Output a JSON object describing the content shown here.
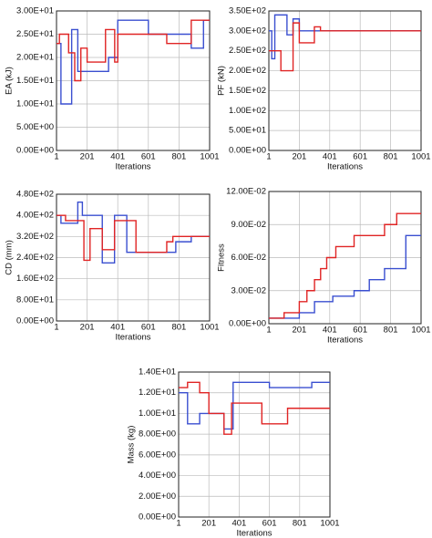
{
  "chart_data": [
    {
      "type": "line",
      "ylabel": "EA (kJ)",
      "xlabel": "Iterations",
      "xlim": [
        1,
        1001
      ],
      "xticks": [
        1,
        201,
        401,
        601,
        801,
        1001
      ],
      "ylim": [
        0,
        30
      ],
      "yticks": [
        {
          "value": 0,
          "label": "0.00E+00"
        },
        {
          "value": 5,
          "label": "5.00E+00"
        },
        {
          "value": 10,
          "label": "1.00E+01"
        },
        {
          "value": 15,
          "label": "1.50E+01"
        },
        {
          "value": 20,
          "label": "2.00E+01"
        },
        {
          "value": 25,
          "label": "2.50E+01"
        },
        {
          "value": 30,
          "label": "3.00E+01"
        }
      ],
      "grid": true,
      "series": [
        {
          "color": "#3a4fd0",
          "x": [
            1,
            30,
            30,
            100,
            100,
            140,
            140,
            341,
            341,
            401,
            401,
            601,
            601,
            881,
            881,
            961,
            961,
            1001
          ],
          "values": [
            23,
            23,
            10,
            10,
            26,
            26,
            17,
            17,
            20,
            20,
            28,
            28,
            25,
            25,
            22,
            22,
            28,
            28
          ]
        },
        {
          "color": "#e02424",
          "x": [
            1,
            20,
            20,
            80,
            80,
            120,
            120,
            160,
            160,
            201,
            201,
            321,
            321,
            381,
            381,
            401,
            401,
            721,
            721,
            881,
            881,
            1001
          ],
          "values": [
            23,
            23,
            25,
            25,
            21,
            21,
            15,
            15,
            22,
            22,
            19,
            19,
            26,
            26,
            19,
            19,
            25,
            25,
            23,
            23,
            28,
            28
          ]
        }
      ]
    },
    {
      "type": "line",
      "ylabel": "PF (kN)",
      "xlabel": "Iterations",
      "xlim": [
        1,
        1001
      ],
      "xticks": [
        1,
        201,
        401,
        601,
        801,
        1001
      ],
      "ylim": [
        0,
        350
      ],
      "yticks": [
        {
          "value": 0,
          "label": "0.00E+00"
        },
        {
          "value": 50,
          "label": "5.00E+01"
        },
        {
          "value": 100,
          "label": "1.00E+02"
        },
        {
          "value": 150,
          "label": "1.50E+02"
        },
        {
          "value": 200,
          "label": "2.00E+02"
        },
        {
          "value": 250,
          "label": "2.50E+02"
        },
        {
          "value": 300,
          "label": "3.00E+02"
        },
        {
          "value": 350,
          "label": "3.50E+02"
        }
      ],
      "grid": true,
      "series": [
        {
          "color": "#3a4fd0",
          "x": [
            1,
            20,
            20,
            40,
            40,
            120,
            120,
            160,
            160,
            201,
            201,
            1001
          ],
          "values": [
            300,
            300,
            230,
            230,
            340,
            340,
            290,
            290,
            330,
            330,
            300,
            300
          ]
        },
        {
          "color": "#e02424",
          "x": [
            1,
            80,
            80,
            160,
            160,
            201,
            201,
            300,
            300,
            340,
            340,
            1001
          ],
          "values": [
            250,
            250,
            200,
            200,
            320,
            320,
            270,
            270,
            310,
            310,
            300,
            300
          ]
        }
      ]
    },
    {
      "type": "line",
      "ylabel": "CD (mm)",
      "xlabel": "Iterations",
      "xlim": [
        1,
        1001
      ],
      "xticks": [
        1,
        201,
        401,
        601,
        801,
        1001
      ],
      "ylim": [
        0,
        480
      ],
      "yticks": [
        {
          "value": 0,
          "label": "0.00E+00"
        },
        {
          "value": 80,
          "label": "8.00E+01"
        },
        {
          "value": 160,
          "label": "1.60E+02"
        },
        {
          "value": 240,
          "label": "2.40E+02"
        },
        {
          "value": 320,
          "label": "3.20E+02"
        },
        {
          "value": 400,
          "label": "4.00E+02"
        },
        {
          "value": 480,
          "label": "4.80E+02"
        }
      ],
      "grid": true,
      "series": [
        {
          "color": "#3a4fd0",
          "x": [
            1,
            30,
            30,
            140,
            140,
            170,
            170,
            300,
            300,
            380,
            380,
            460,
            460,
            780,
            780,
            881,
            881,
            1001
          ],
          "values": [
            400,
            400,
            370,
            370,
            450,
            450,
            400,
            400,
            220,
            220,
            400,
            400,
            260,
            260,
            300,
            300,
            320,
            320
          ]
        },
        {
          "color": "#e02424",
          "x": [
            1,
            60,
            60,
            180,
            180,
            220,
            220,
            300,
            300,
            380,
            380,
            520,
            520,
            721,
            721,
            761,
            761,
            1001
          ],
          "values": [
            400,
            400,
            380,
            380,
            230,
            230,
            350,
            350,
            270,
            270,
            380,
            380,
            260,
            260,
            300,
            300,
            320,
            320
          ]
        }
      ]
    },
    {
      "type": "line",
      "ylabel": "Fitness",
      "xlabel": "Iterations",
      "xlim": [
        1,
        1001
      ],
      "xticks": [
        1,
        201,
        401,
        601,
        801,
        1001
      ],
      "ylim": [
        0,
        0.12
      ],
      "yticks": [
        {
          "value": 0,
          "label": "0.00E+00"
        },
        {
          "value": 0.03,
          "label": "3.00E-02"
        },
        {
          "value": 0.06,
          "label": "6.00E-02"
        },
        {
          "value": 0.09,
          "label": "9.00E-02"
        },
        {
          "value": 0.12,
          "label": "12.00E-02"
        }
      ],
      "grid": true,
      "series": [
        {
          "color": "#3a4fd0",
          "x": [
            1,
            201,
            201,
            301,
            301,
            421,
            421,
            561,
            561,
            661,
            661,
            761,
            761,
            901,
            901,
            1001
          ],
          "values": [
            0.005,
            0.005,
            0.01,
            0.01,
            0.02,
            0.02,
            0.025,
            0.025,
            0.03,
            0.03,
            0.04,
            0.04,
            0.05,
            0.05,
            0.08,
            0.08
          ]
        },
        {
          "color": "#e02424",
          "x": [
            1,
            101,
            101,
            201,
            201,
            251,
            251,
            301,
            301,
            341,
            341,
            381,
            381,
            441,
            441,
            561,
            561,
            761,
            761,
            841,
            841,
            1001
          ],
          "values": [
            0.005,
            0.005,
            0.01,
            0.01,
            0.02,
            0.02,
            0.03,
            0.03,
            0.04,
            0.04,
            0.05,
            0.05,
            0.06,
            0.06,
            0.07,
            0.07,
            0.08,
            0.08,
            0.09,
            0.09,
            0.1,
            0.1
          ]
        }
      ]
    },
    {
      "type": "line",
      "ylabel": "Mass (kg)",
      "xlabel": "Iterations",
      "xlim": [
        1,
        1001
      ],
      "xticks": [
        1,
        201,
        401,
        601,
        801,
        1001
      ],
      "ylim": [
        0,
        14
      ],
      "yticks": [
        {
          "value": 0,
          "label": "0.00E+00"
        },
        {
          "value": 2,
          "label": "2.00E+00"
        },
        {
          "value": 4,
          "label": "4.00E+00"
        },
        {
          "value": 6,
          "label": "6.00E+00"
        },
        {
          "value": 8,
          "label": "8.00E+00"
        },
        {
          "value": 10,
          "label": "1.00E+01"
        },
        {
          "value": 12,
          "label": "1.20E+01"
        },
        {
          "value": 14,
          "label": "1.40E+01"
        }
      ],
      "grid": true,
      "series": [
        {
          "color": "#3a4fd0",
          "x": [
            1,
            60,
            60,
            140,
            140,
            301,
            301,
            361,
            361,
            601,
            601,
            881,
            881,
            1001
          ],
          "values": [
            12,
            12,
            9,
            9,
            10,
            10,
            8.5,
            8.5,
            13,
            13,
            12.5,
            12.5,
            13,
            13
          ]
        },
        {
          "color": "#e02424",
          "x": [
            1,
            60,
            60,
            140,
            140,
            201,
            201,
            301,
            301,
            351,
            351,
            551,
            551,
            721,
            721,
            1001
          ],
          "values": [
            12.5,
            12.5,
            13,
            13,
            12,
            12,
            10,
            10,
            8,
            8,
            11,
            11,
            9,
            9,
            10.5,
            10.5
          ]
        }
      ]
    }
  ]
}
